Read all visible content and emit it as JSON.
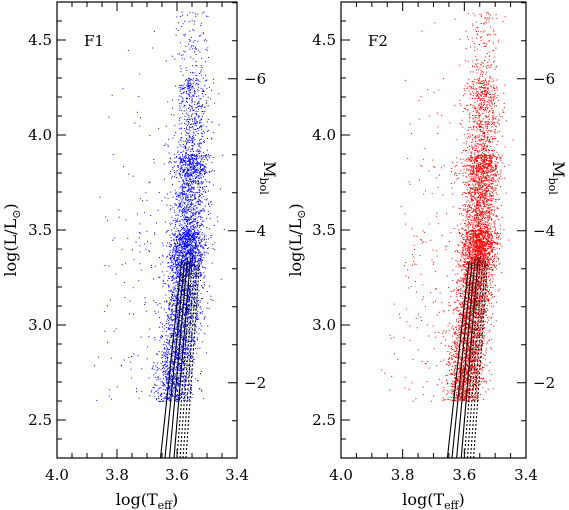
{
  "chart_data": [
    {
      "type": "scatter",
      "panel_label": "F1",
      "xlabel_main": "log(T",
      "xlabel_sub": "eff",
      "xlabel_end": ")",
      "ylabel_left": "log(L/L",
      "ylabel_left_sym": "⊙",
      "ylabel_left_end": ")",
      "ylabel_right_main": "M",
      "ylabel_right_sub": "bol",
      "xlim": [
        4.0,
        3.4
      ],
      "ylim": [
        2.3,
        4.7
      ],
      "x_ticks": [
        {
          "v": 4.0,
          "label": "4.0"
        },
        {
          "v": 3.8,
          "label": "3.8"
        },
        {
          "v": 3.6,
          "label": "3.6"
        },
        {
          "v": 3.4,
          "label": "3.4"
        }
      ],
      "y_ticks": [
        {
          "v": 2.5,
          "label": "2.5"
        },
        {
          "v": 3.0,
          "label": "3.0"
        },
        {
          "v": 3.5,
          "label": "3.5"
        },
        {
          "v": 4.0,
          "label": "4.0"
        },
        {
          "v": 4.5,
          "label": "4.5"
        }
      ],
      "right_ticks": [
        {
          "m": -2,
          "label": "−2"
        },
        {
          "m": -4,
          "label": "−4"
        },
        {
          "m": -6,
          "label": "−6"
        }
      ],
      "point_color": "#0000ff",
      "line_color": "#000000",
      "grid": false,
      "series": [
        {
          "kind": "scatter",
          "n_points": 4500,
          "ridge": [
            [
              2.4,
              3.63
            ],
            [
              3.0,
              3.59
            ],
            [
              3.5,
              3.56
            ],
            [
              4.0,
              3.55
            ],
            [
              4.6,
              3.55
            ]
          ],
          "spread": 0.03
        },
        {
          "kind": "isochrones",
          "solid": [
            [
              [
                3.655,
                2.3
              ],
              [
                3.585,
                3.33
              ]
            ],
            [
              [
                3.64,
                2.3
              ],
              [
                3.575,
                3.33
              ]
            ],
            [
              [
                3.625,
                2.3
              ],
              [
                3.565,
                3.35
              ]
            ],
            [
              [
                3.61,
                2.3
              ],
              [
                3.555,
                3.35
              ]
            ]
          ],
          "dotted": [
            [
              [
                3.6,
                2.3
              ],
              [
                3.548,
                3.36
              ]
            ],
            [
              [
                3.59,
                2.3
              ],
              [
                3.54,
                3.35
              ]
            ],
            [
              [
                3.58,
                2.3
              ],
              [
                3.532,
                3.34
              ]
            ],
            [
              [
                3.57,
                2.3
              ],
              [
                3.525,
                3.33
              ]
            ]
          ]
        }
      ]
    },
    {
      "type": "scatter",
      "panel_label": "F2",
      "xlabel_main": "log(T",
      "xlabel_sub": "eff",
      "xlabel_end": ")",
      "ylabel_left": "log(L/L",
      "ylabel_left_sym": "⊙",
      "ylabel_left_end": ")",
      "ylabel_right_main": "M",
      "ylabel_right_sub": "bol",
      "xlim": [
        4.0,
        3.4
      ],
      "ylim": [
        2.3,
        4.7
      ],
      "x_ticks": [
        {
          "v": 4.0,
          "label": "4.0"
        },
        {
          "v": 3.8,
          "label": "3.8"
        },
        {
          "v": 3.6,
          "label": "3.6"
        },
        {
          "v": 3.4,
          "label": "3.4"
        }
      ],
      "y_ticks": [
        {
          "v": 2.5,
          "label": "2.5"
        },
        {
          "v": 3.0,
          "label": "3.0"
        },
        {
          "v": 3.5,
          "label": "3.5"
        },
        {
          "v": 4.0,
          "label": "4.0"
        },
        {
          "v": 4.5,
          "label": "4.5"
        }
      ],
      "right_ticks": [
        {
          "m": -2,
          "label": "−2"
        },
        {
          "m": -4,
          "label": "−4"
        },
        {
          "m": -6,
          "label": "−6"
        }
      ],
      "point_color": "#ff0000",
      "line_color": "#000000",
      "grid": false,
      "series": [
        {
          "kind": "scatter",
          "n_points": 6000,
          "ridge": [
            [
              2.4,
              3.62
            ],
            [
              3.0,
              3.58
            ],
            [
              3.5,
              3.55
            ],
            [
              4.0,
              3.54
            ],
            [
              4.6,
              3.54
            ]
          ],
          "spread": 0.028
        },
        {
          "kind": "isochrones",
          "solid": [
            [
              [
                3.655,
                2.3
              ],
              [
                3.585,
                3.33
              ]
            ],
            [
              [
                3.64,
                2.3
              ],
              [
                3.575,
                3.33
              ]
            ],
            [
              [
                3.625,
                2.3
              ],
              [
                3.565,
                3.35
              ]
            ],
            [
              [
                3.61,
                2.3
              ],
              [
                3.555,
                3.35
              ]
            ]
          ],
          "dotted": [
            [
              [
                3.6,
                2.3
              ],
              [
                3.548,
                3.36
              ]
            ],
            [
              [
                3.59,
                2.3
              ],
              [
                3.54,
                3.35
              ]
            ],
            [
              [
                3.58,
                2.3
              ],
              [
                3.532,
                3.34
              ]
            ],
            [
              [
                3.57,
                2.3
              ],
              [
                3.525,
                3.33
              ]
            ]
          ]
        }
      ]
    }
  ]
}
